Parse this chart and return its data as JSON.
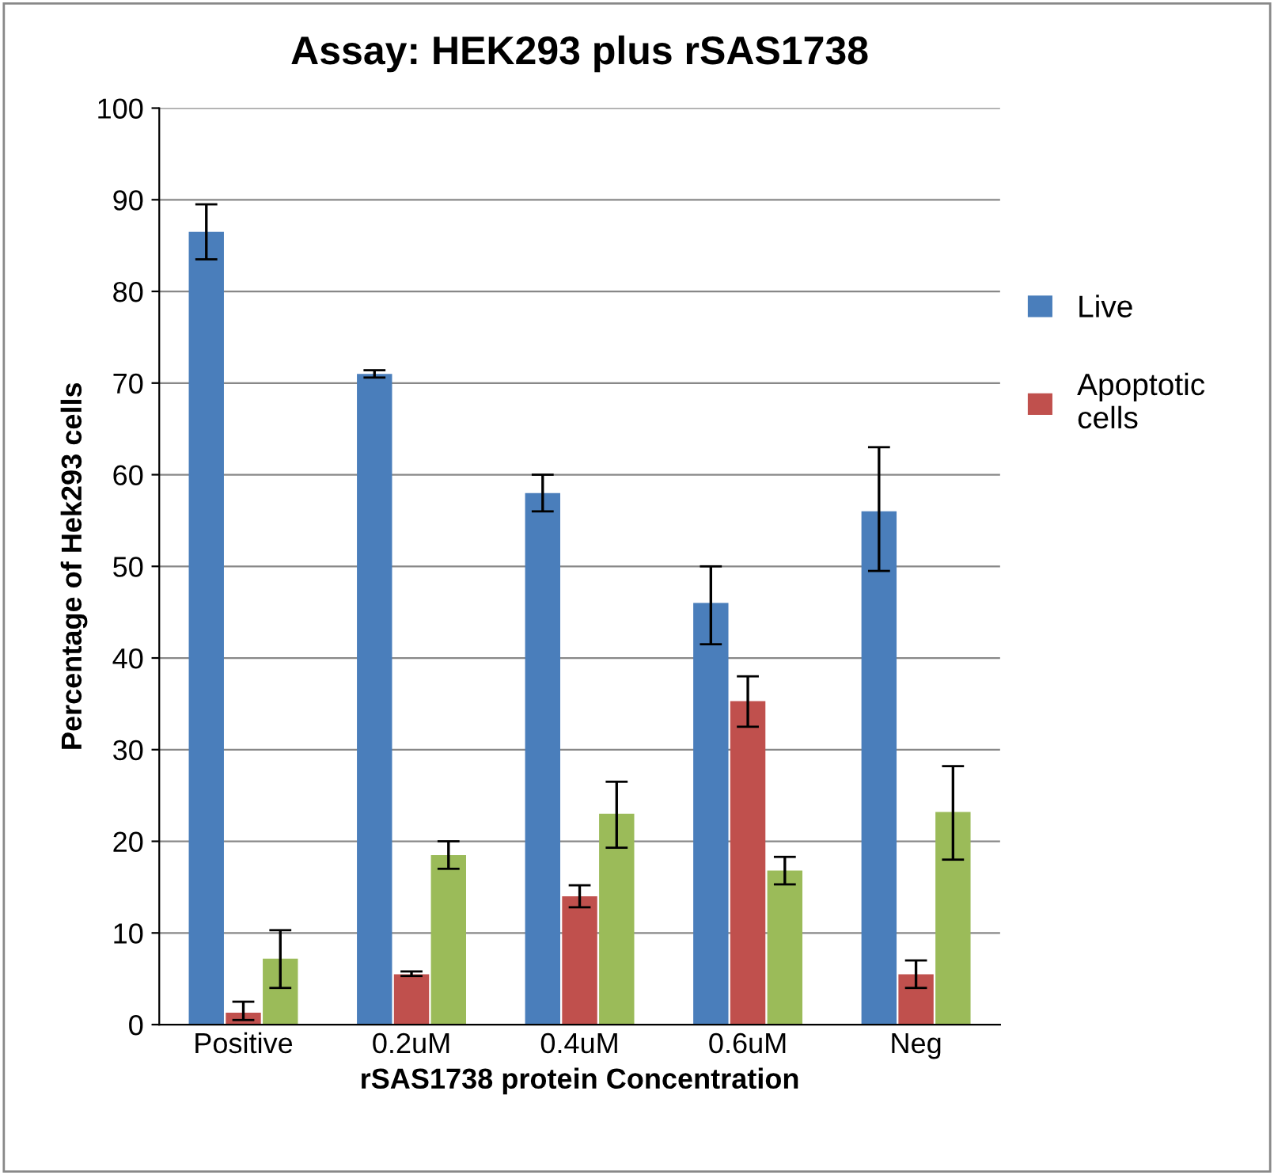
{
  "chart_data": {
    "type": "bar",
    "title": "Assay: HEK293 plus rSAS1738",
    "xlabel": "rSAS1738 protein Concentration",
    "ylabel": "Percentage of Hek293 cells",
    "categories": [
      "Positive",
      "0.2uM",
      "0.4uM",
      "0.6uM",
      "Neg"
    ],
    "series": [
      {
        "name": "Live",
        "color": "#4a7ebb",
        "values": [
          86.5,
          71,
          58,
          46,
          56
        ],
        "errors": [
          [
            83.5,
            89.5
          ],
          [
            70.6,
            71.4
          ],
          [
            56,
            60
          ],
          [
            41.5,
            50
          ],
          [
            49.5,
            63
          ]
        ]
      },
      {
        "name": "Apoptotic\ncells",
        "color": "#c0504d",
        "values": [
          1.3,
          5.5,
          14,
          35.3,
          5.5
        ],
        "errors": [
          [
            0.5,
            2.5
          ],
          [
            5.3,
            5.8
          ],
          [
            12.8,
            15.2
          ],
          [
            32.5,
            38
          ],
          [
            4,
            7
          ]
        ]
      },
      {
        "color": "#9bbb59",
        "values": [
          7.2,
          18.5,
          23,
          16.8,
          23.2
        ],
        "errors": [
          [
            4,
            10.3
          ],
          [
            17,
            20
          ],
          [
            19.3,
            26.5
          ],
          [
            15.3,
            18.3
          ],
          [
            18,
            28.2
          ]
        ]
      }
    ],
    "ylim": [
      0,
      100
    ],
    "yticks": [
      0,
      10,
      20,
      30,
      40,
      50,
      60,
      70,
      80,
      90,
      100
    ],
    "grid": "y",
    "legend": "right"
  }
}
